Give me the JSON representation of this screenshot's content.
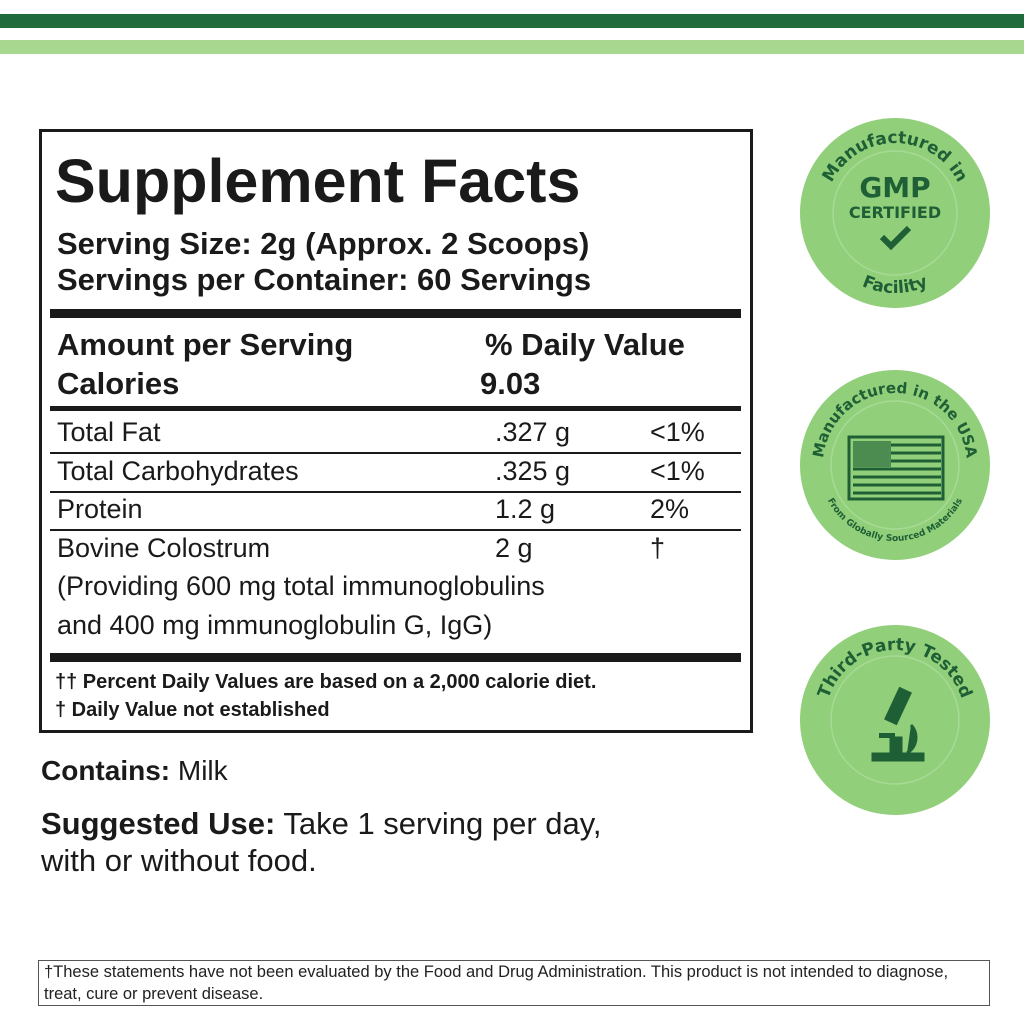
{
  "facts": {
    "title": "Supplement Facts",
    "serving_size": "Serving Size: 2g (Approx. 2 Scoops)",
    "servings_per_container": "Servings per Container: 60 Servings",
    "amount_header": "Amount per Serving",
    "dv_header": "% Daily Value",
    "calories_label": "Calories",
    "calories_value": "9.03",
    "rows": [
      [
        "Total Fat",
        ".327 g",
        "<1%"
      ],
      [
        "Total Carbohydrates",
        ".325 g",
        "<1%"
      ],
      [
        "Protein",
        "1.2 g",
        "2%"
      ],
      [
        "Bovine Colostrum",
        "2 g",
        "†"
      ]
    ],
    "row_note_lines": [
      "(Providing 600 mg total immunoglobulins",
      "and 400 mg immunoglobulin G, IgG)"
    ],
    "footnotes": [
      "†† Percent Daily Values are based on a 2,000 calorie diet.",
      "† Daily Value not established"
    ]
  },
  "contains": {
    "label": "Contains:",
    "value": "Milk"
  },
  "suggested_use": {
    "label": "Suggested Use:",
    "lines": [
      "Take 1 serving per day,",
      "with or without food."
    ]
  },
  "badges": [
    {
      "top": "Manufactured in",
      "main": "GMP",
      "sub": "CERTIFIED",
      "bottom": "Facility"
    },
    {
      "top": "Manufactured in the USA",
      "bottom": "From Globally Sourced Materials"
    },
    {
      "top": "Third-Party Tested"
    }
  ],
  "disclaimer": "†These statements have not been evaluated by the Food and Drug Administration. This product is not intended to diagnose, treat, cure or prevent disease."
}
